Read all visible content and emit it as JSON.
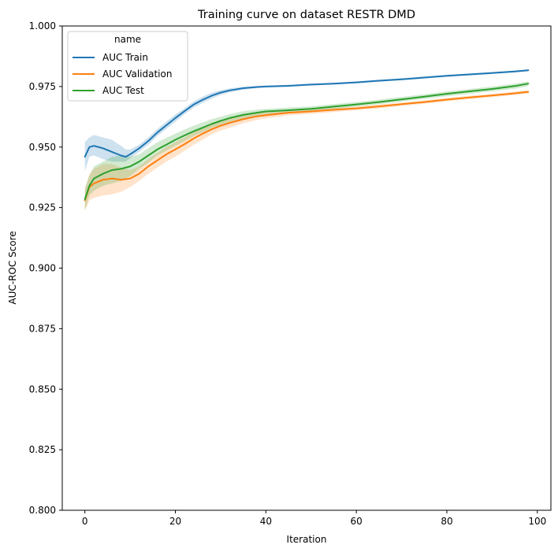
{
  "chart_data": {
    "type": "line",
    "title": "Training curve on dataset RESTR DMD",
    "xlabel": "Iteration",
    "ylabel": "AUC-ROC Score",
    "xlim": [
      -5,
      103
    ],
    "ylim": [
      0.8,
      1.0
    ],
    "xticks": [
      0,
      20,
      40,
      60,
      80,
      100
    ],
    "yticks": [
      0.8,
      0.825,
      0.85,
      0.875,
      0.9,
      0.925,
      0.95,
      0.975,
      1.0
    ],
    "xtick_labels": [
      "0",
      "20",
      "40",
      "60",
      "80",
      "100"
    ],
    "ytick_labels": [
      "0.800",
      "0.825",
      "0.850",
      "0.875",
      "0.900",
      "0.925",
      "0.950",
      "0.975",
      "1.000"
    ],
    "grid": false,
    "legend": {
      "title": "name",
      "placement": "top-left"
    },
    "series": [
      {
        "name": "AUC Train",
        "color": "#1f77b4",
        "x": [
          0,
          1,
          2,
          4,
          6,
          8,
          9,
          10,
          12,
          14,
          16,
          18,
          20,
          22,
          24,
          26,
          28,
          30,
          32,
          35,
          38,
          40,
          45,
          50,
          55,
          60,
          65,
          70,
          75,
          80,
          85,
          90,
          95,
          98
        ],
        "y": [
          0.946,
          0.95,
          0.9505,
          0.9495,
          0.948,
          0.9465,
          0.946,
          0.947,
          0.9495,
          0.9525,
          0.956,
          0.959,
          0.962,
          0.9648,
          0.9675,
          0.9695,
          0.9712,
          0.9725,
          0.9734,
          0.9743,
          0.9748,
          0.975,
          0.9753,
          0.9758,
          0.9762,
          0.9767,
          0.9774,
          0.978,
          0.9787,
          0.9794,
          0.98,
          0.9806,
          0.9812,
          0.9817
        ],
        "lower": [
          0.94,
          0.946,
          0.9465,
          0.945,
          0.944,
          0.944,
          0.944,
          0.9455,
          0.948,
          0.951,
          0.9545,
          0.9575,
          0.9605,
          0.9635,
          0.9662,
          0.9682,
          0.97,
          0.9715,
          0.9726,
          0.9737,
          0.9743,
          0.9746,
          0.9749,
          0.9754,
          0.9758,
          0.9763,
          0.977,
          0.9776,
          0.9783,
          0.979,
          0.9796,
          0.9802,
          0.9808,
          0.9813
        ],
        "upper": [
          0.952,
          0.954,
          0.955,
          0.954,
          0.953,
          0.9505,
          0.949,
          0.949,
          0.951,
          0.954,
          0.9575,
          0.9605,
          0.9635,
          0.966,
          0.9688,
          0.9708,
          0.9724,
          0.9735,
          0.9742,
          0.9749,
          0.9753,
          0.9754,
          0.9757,
          0.9762,
          0.9766,
          0.9771,
          0.9778,
          0.9784,
          0.9791,
          0.9798,
          0.9804,
          0.981,
          0.9816,
          0.9821
        ]
      },
      {
        "name": "AUC Validation",
        "color": "#ff7f0e",
        "x": [
          0,
          1,
          2,
          4,
          6,
          8,
          10,
          12,
          14,
          16,
          18,
          20,
          22,
          24,
          26,
          28,
          30,
          32,
          35,
          38,
          40,
          45,
          50,
          55,
          60,
          65,
          70,
          75,
          80,
          85,
          90,
          95,
          98
        ],
        "y": [
          0.928,
          0.9335,
          0.935,
          0.9365,
          0.937,
          0.9365,
          0.937,
          0.939,
          0.942,
          0.9445,
          0.947,
          0.949,
          0.9512,
          0.9535,
          0.9555,
          0.9573,
          0.9588,
          0.96,
          0.9615,
          0.9627,
          0.9632,
          0.9642,
          0.9647,
          0.9654,
          0.966,
          0.9668,
          0.9677,
          0.9686,
          0.9696,
          0.9705,
          0.9713,
          0.9722,
          0.9728
        ],
        "lower": [
          0.9235,
          0.928,
          0.929,
          0.93,
          0.9305,
          0.9315,
          0.9335,
          0.936,
          0.939,
          0.9415,
          0.944,
          0.946,
          0.9485,
          0.951,
          0.953,
          0.9552,
          0.9568,
          0.958,
          0.9598,
          0.9612,
          0.9619,
          0.9631,
          0.9637,
          0.9645,
          0.9652,
          0.966,
          0.967,
          0.9679,
          0.9689,
          0.9698,
          0.9706,
          0.9715,
          0.9721
        ],
        "upper": [
          0.9325,
          0.939,
          0.941,
          0.943,
          0.943,
          0.9415,
          0.9405,
          0.942,
          0.945,
          0.9475,
          0.95,
          0.952,
          0.954,
          0.956,
          0.958,
          0.9594,
          0.9608,
          0.962,
          0.9632,
          0.9642,
          0.9645,
          0.9653,
          0.9657,
          0.9663,
          0.9668,
          0.9676,
          0.9684,
          0.9693,
          0.9703,
          0.9712,
          0.972,
          0.9729,
          0.9735
        ]
      },
      {
        "name": "AUC Test",
        "color": "#2ca02c",
        "x": [
          0,
          1,
          2,
          4,
          6,
          8,
          10,
          12,
          14,
          16,
          18,
          20,
          22,
          24,
          26,
          28,
          30,
          32,
          35,
          38,
          40,
          45,
          50,
          55,
          60,
          65,
          70,
          75,
          80,
          85,
          90,
          95,
          98
        ],
        "y": [
          0.9285,
          0.934,
          0.937,
          0.939,
          0.9405,
          0.941,
          0.942,
          0.944,
          0.9465,
          0.949,
          0.951,
          0.953,
          0.9548,
          0.9565,
          0.958,
          0.9595,
          0.9608,
          0.962,
          0.9633,
          0.9642,
          0.9647,
          0.9652,
          0.9658,
          0.9667,
          0.9676,
          0.9686,
          0.9697,
          0.9708,
          0.972,
          0.973,
          0.974,
          0.9752,
          0.9762
        ],
        "lower": [
          0.924,
          0.93,
          0.932,
          0.934,
          0.935,
          0.936,
          0.938,
          0.941,
          0.9435,
          0.9465,
          0.9485,
          0.9505,
          0.9525,
          0.9545,
          0.9562,
          0.9578,
          0.9592,
          0.9605,
          0.9618,
          0.963,
          0.9636,
          0.9642,
          0.9649,
          0.9658,
          0.9667,
          0.9677,
          0.9688,
          0.9699,
          0.971,
          0.972,
          0.973,
          0.9741,
          0.9751
        ],
        "upper": [
          0.933,
          0.938,
          0.942,
          0.944,
          0.946,
          0.9465,
          0.946,
          0.947,
          0.9495,
          0.952,
          0.9538,
          0.9555,
          0.9572,
          0.9588,
          0.9602,
          0.9615,
          0.9625,
          0.9636,
          0.9648,
          0.9655,
          0.9658,
          0.9663,
          0.9668,
          0.9677,
          0.9686,
          0.9696,
          0.9707,
          0.9718,
          0.973,
          0.974,
          0.975,
          0.9762,
          0.9772
        ]
      }
    ]
  }
}
